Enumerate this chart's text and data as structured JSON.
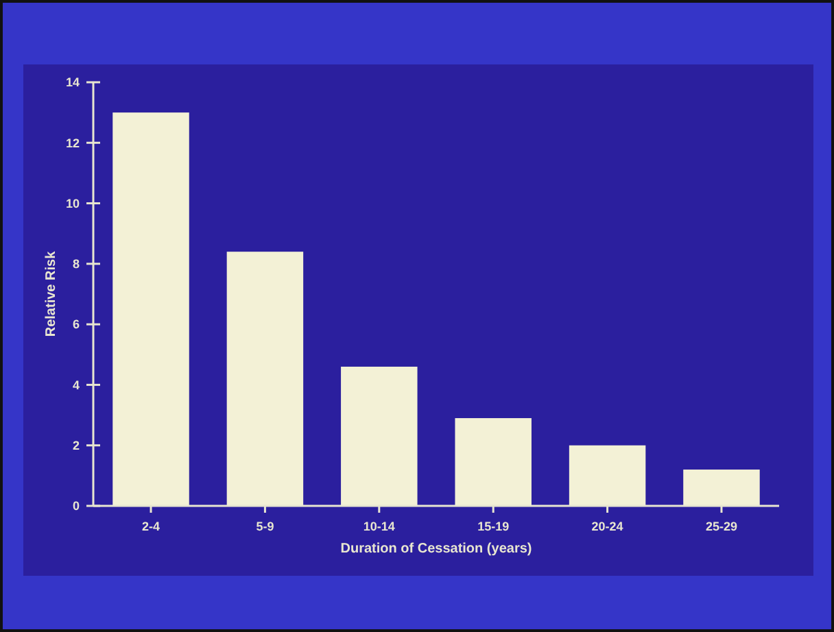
{
  "chart_data": {
    "type": "bar",
    "xlabel": "Duration of Cessation (years)",
    "ylabel": "Relative Risk",
    "categories": [
      "2-4",
      "5-9",
      "10-14",
      "15-19",
      "20-24",
      "25-29"
    ],
    "values": [
      13,
      8.4,
      4.6,
      2.9,
      2,
      1.2
    ],
    "color": "#f3f1d6",
    "ylim": [
      0,
      14
    ],
    "yticks": [
      0,
      2,
      4,
      6,
      8,
      10,
      12,
      14
    ],
    "grid": false
  }
}
